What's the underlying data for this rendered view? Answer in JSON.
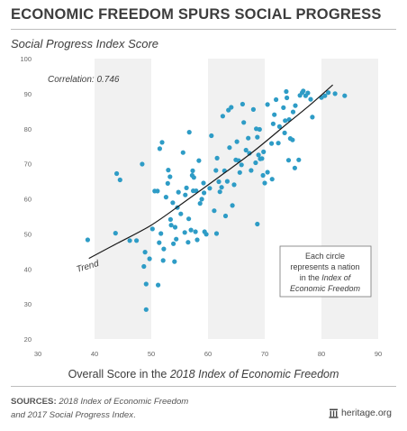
{
  "header": {
    "title": "ECONOMIC FREEDOM SPURS SOCIAL PROGRESS"
  },
  "footer": {
    "sources_label": "SOURCES:",
    "source_line1_italic": "2018 Index of Economic Freedom",
    "source_line2_italic_a": "and 2017 Social Progress Index",
    "source_line2_end": ".",
    "brand": "heritage.org",
    "brand_icon": "bell-icon"
  },
  "colors": {
    "points": "#2e9cc6",
    "trend": "#1a1a1a",
    "band": "#f1f1f1",
    "text": "#3d3d3d"
  },
  "chart_data": {
    "type": "scatter",
    "title": "",
    "ylabel": "Social Progress Index Score",
    "xlabel_prefix": "Overall Score in the ",
    "xlabel_italic": "2018 Index of Economic Freedom",
    "xlim": [
      30,
      90
    ],
    "ylim": [
      20,
      100
    ],
    "xticks": [
      30,
      40,
      50,
      60,
      70,
      80,
      90
    ],
    "yticks": [
      20,
      30,
      40,
      50,
      60,
      70,
      80,
      90,
      100
    ],
    "grid": false,
    "alternating_bands": true,
    "correlation_label": "Correlation: 0.746",
    "trend_label": "Trend",
    "note": [
      "Each circle",
      "represents a nation",
      "in the Index of",
      "Economic Freedom"
    ],
    "trend": {
      "x": [
        39,
        44,
        50,
        56,
        62,
        68,
        74,
        78,
        82
      ],
      "y": [
        43,
        47.3,
        52.5,
        59.3,
        66.3,
        73.5,
        81.5,
        86.8,
        92.5
      ]
    },
    "points": [
      [
        38.8,
        48.3
      ],
      [
        43.7,
        50.2
      ],
      [
        43.9,
        67.2
      ],
      [
        44.5,
        65.4
      ],
      [
        46.2,
        48.1
      ],
      [
        47.4,
        48.1
      ],
      [
        48.4,
        69.9
      ],
      [
        48.7,
        40.7
      ],
      [
        48.9,
        44.8
      ],
      [
        49.1,
        35.7
      ],
      [
        49.1,
        28.4
      ],
      [
        49.7,
        42.9
      ],
      [
        50.2,
        51.4
      ],
      [
        50.6,
        62.2
      ],
      [
        51.1,
        62.2
      ],
      [
        51.2,
        35.4
      ],
      [
        51.4,
        47.5
      ],
      [
        51.5,
        74.3
      ],
      [
        51.7,
        50.1
      ],
      [
        51.9,
        76.1
      ],
      [
        52.1,
        42.4
      ],
      [
        52.2,
        45.7
      ],
      [
        52.6,
        60.5
      ],
      [
        52.9,
        64.4
      ],
      [
        53.0,
        68.2
      ],
      [
        53.3,
        66.3
      ],
      [
        53.4,
        54.1
      ],
      [
        53.5,
        52.5
      ],
      [
        53.8,
        58.9
      ],
      [
        53.9,
        47.2
      ],
      [
        54.1,
        42.1
      ],
      [
        54.2,
        51.9
      ],
      [
        54.4,
        48.5
      ],
      [
        54.6,
        57.5
      ],
      [
        54.8,
        61.9
      ],
      [
        55.2,
        55.7
      ],
      [
        55.6,
        73.2
      ],
      [
        55.9,
        50.4
      ],
      [
        56.0,
        61.1
      ],
      [
        56.2,
        63.1
      ],
      [
        56.5,
        47.6
      ],
      [
        56.6,
        54.3
      ],
      [
        56.7,
        79.0
      ],
      [
        57.0,
        51.1
      ],
      [
        57.2,
        66.7
      ],
      [
        57.3,
        68.0
      ],
      [
        57.4,
        62.3
      ],
      [
        57.5,
        66.1
      ],
      [
        57.8,
        50.6
      ],
      [
        57.9,
        62.3
      ],
      [
        58.1,
        48.3
      ],
      [
        58.4,
        70.9
      ],
      [
        58.6,
        58.7
      ],
      [
        58.9,
        59.9
      ],
      [
        59.2,
        64.5
      ],
      [
        59.3,
        61.7
      ],
      [
        59.4,
        50.6
      ],
      [
        59.7,
        49.9
      ],
      [
        60.3,
        63.0
      ],
      [
        60.6,
        78.0
      ],
      [
        61.1,
        56.6
      ],
      [
        61.4,
        68.1
      ],
      [
        61.5,
        50.1
      ],
      [
        61.6,
        71.6
      ],
      [
        61.9,
        64.9
      ],
      [
        62.1,
        62.0
      ],
      [
        62.4,
        63.3
      ],
      [
        62.6,
        83.6
      ],
      [
        62.9,
        68.0
      ],
      [
        63.1,
        55.1
      ],
      [
        63.4,
        65.0
      ],
      [
        63.6,
        85.3
      ],
      [
        63.8,
        74.6
      ],
      [
        64.1,
        86.1
      ],
      [
        64.3,
        58.1
      ],
      [
        64.6,
        64.0
      ],
      [
        64.9,
        71.1
      ],
      [
        65.1,
        76.3
      ],
      [
        65.4,
        70.9
      ],
      [
        65.6,
        67.5
      ],
      [
        65.9,
        69.7
      ],
      [
        66.1,
        87.0
      ],
      [
        66.3,
        81.8
      ],
      [
        66.7,
        73.9
      ],
      [
        67.1,
        77.3
      ],
      [
        67.3,
        73.0
      ],
      [
        67.6,
        68.1
      ],
      [
        68.0,
        85.5
      ],
      [
        68.5,
        80.0
      ],
      [
        68.7,
        77.6
      ],
      [
        68.9,
        72.5
      ],
      [
        69.1,
        79.8
      ],
      [
        69.2,
        71.4
      ],
      [
        69.5,
        71.5
      ],
      [
        69.7,
        66.7
      ],
      [
        69.8,
        73.4
      ],
      [
        70.0,
        64.5
      ],
      [
        70.5,
        86.9
      ],
      [
        70.5,
        67.6
      ],
      [
        71.2,
        75.8
      ],
      [
        71.3,
        65.6
      ],
      [
        71.5,
        81.4
      ],
      [
        71.7,
        84.0
      ],
      [
        72.0,
        88.3
      ],
      [
        72.4,
        75.9
      ],
      [
        72.6,
        80.6
      ],
      [
        73.3,
        86.0
      ],
      [
        73.5,
        78.8
      ],
      [
        73.6,
        82.3
      ],
      [
        73.8,
        90.6
      ],
      [
        73.9,
        88.8
      ],
      [
        74.2,
        71.0
      ],
      [
        74.3,
        82.6
      ],
      [
        74.5,
        77.2
      ],
      [
        74.9,
        76.8
      ],
      [
        75.0,
        84.8
      ],
      [
        75.3,
        68.8
      ],
      [
        75.4,
        86.6
      ],
      [
        76.0,
        71.1
      ],
      [
        76.2,
        89.5
      ],
      [
        76.6,
        90.3
      ],
      [
        76.8,
        90.8
      ],
      [
        77.2,
        89.4
      ],
      [
        77.6,
        90.2
      ],
      [
        78.1,
        88.4
      ],
      [
        78.4,
        83.3
      ],
      [
        80.0,
        88.9
      ],
      [
        80.6,
        89.4
      ],
      [
        81.2,
        90.3
      ],
      [
        82.4,
        90.0
      ],
      [
        84.1,
        89.4
      ],
      [
        68.7,
        52.8
      ],
      [
        68.4,
        70.3
      ]
    ]
  }
}
